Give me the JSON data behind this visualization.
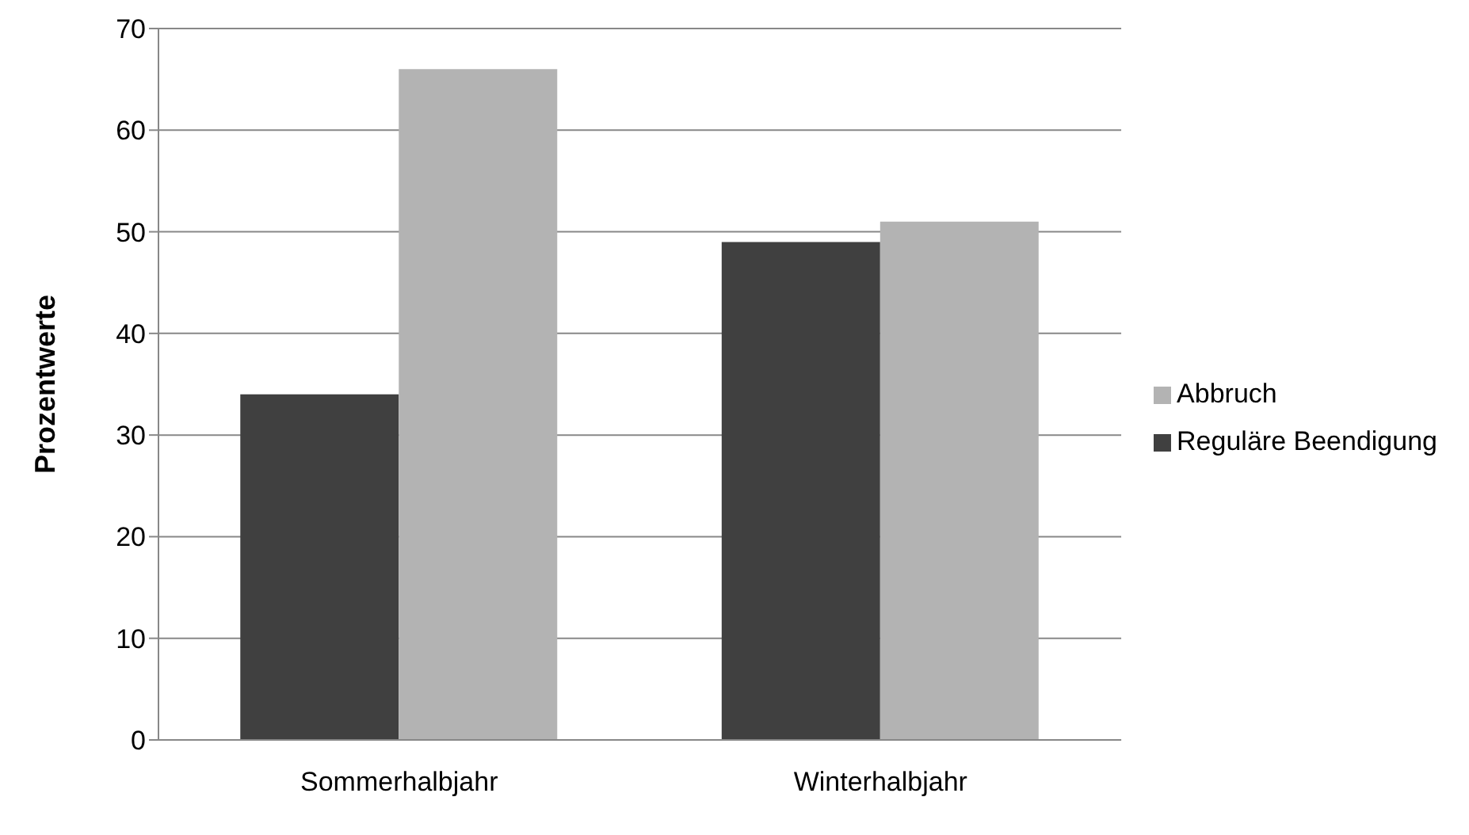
{
  "chart_data": {
    "type": "bar",
    "ylabel": "Prozentwerte",
    "categories": [
      "Sommerhalbjahr",
      "Winterhalbjahr"
    ],
    "series": [
      {
        "name": "Reguläre Beendigung",
        "color": "#404040",
        "values": [
          34,
          49
        ]
      },
      {
        "name": "Abbruch",
        "color": "#b3b3b3",
        "values": [
          66,
          51
        ]
      }
    ],
    "ylim": [
      0,
      70
    ],
    "yticks": [
      0,
      10,
      20,
      30,
      40,
      50,
      60,
      70
    ],
    "grid": "y",
    "legend": "right"
  }
}
